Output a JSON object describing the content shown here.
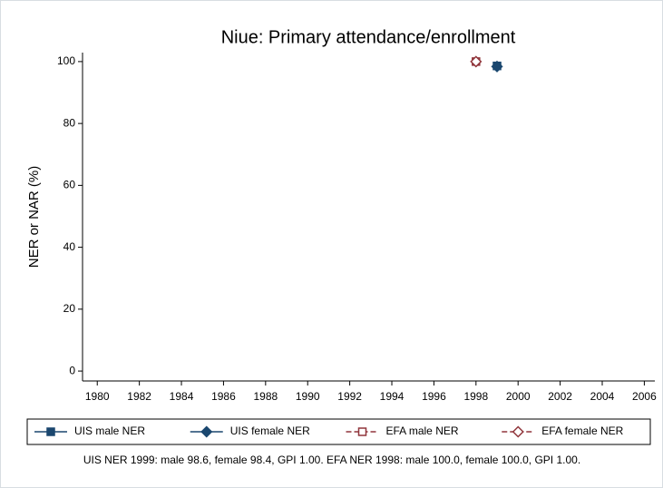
{
  "chart_data": {
    "type": "line",
    "title": "Niue: Primary attendance/enrollment",
    "ylabel": "NER or NAR (%)",
    "xlim": [
      1979.3,
      2006.5
    ],
    "xticks": [
      1980,
      1982,
      1984,
      1986,
      1988,
      1990,
      1992,
      1994,
      1996,
      1998,
      2000,
      2002,
      2004,
      2006
    ],
    "ylim": [
      -3.2,
      102.9
    ],
    "yticks": [
      0,
      20,
      40,
      60,
      80,
      100
    ],
    "grid": false,
    "legend": "bottom",
    "series": [
      {
        "name": "UIS male NER",
        "color": "#1a476f",
        "marker": "square",
        "filled": true,
        "dashed": false,
        "x": [
          1999
        ],
        "values": [
          98.6
        ]
      },
      {
        "name": "UIS female NER",
        "color": "#1a476f",
        "marker": "diamond",
        "filled": true,
        "dashed": false,
        "x": [
          1999
        ],
        "values": [
          98.4
        ]
      },
      {
        "name": "EFA male NER",
        "color": "#90353b",
        "marker": "square",
        "filled": false,
        "dashed": true,
        "x": [
          1998
        ],
        "values": [
          100.0
        ]
      },
      {
        "name": "EFA female NER",
        "color": "#90353b",
        "marker": "diamond",
        "filled": false,
        "dashed": true,
        "x": [
          1998
        ],
        "values": [
          100.0
        ]
      }
    ],
    "note": "UIS NER 1999: male 98.6, female 98.4, GPI 1.00. EFA NER 1998: male 100.0, female 100.0, GPI 1.00."
  }
}
